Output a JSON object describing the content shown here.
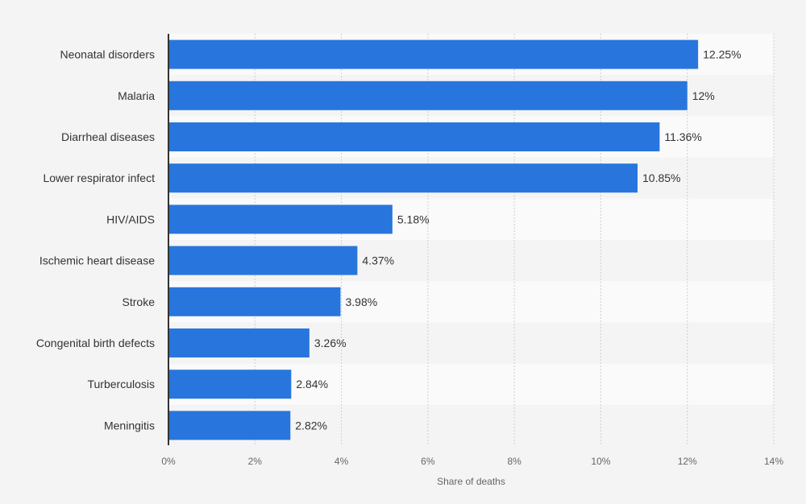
{
  "chart_data": {
    "type": "bar",
    "orientation": "horizontal",
    "title": "",
    "xlabel": "Share of deaths",
    "ylabel": "",
    "categories": [
      "Neonatal disorders",
      "Malaria",
      "Diarrheal diseases",
      "Lower respirator infect",
      "HIV/AIDS",
      "Ischemic heart disease",
      "Stroke",
      "Congenital birth defects",
      "Turberculosis",
      "Meningitis"
    ],
    "values": [
      12.25,
      12,
      11.36,
      10.85,
      5.18,
      4.37,
      3.98,
      3.26,
      2.84,
      2.82
    ],
    "value_labels": [
      "12.25%",
      "12%",
      "11.36%",
      "10.85%",
      "5.18%",
      "4.37%",
      "3.98%",
      "3.26%",
      "2.84%",
      "2.82%"
    ],
    "xlim": [
      0,
      14
    ],
    "x_ticks": [
      0,
      2,
      4,
      6,
      8,
      10,
      12,
      14
    ],
    "x_tick_labels": [
      "0%",
      "2%",
      "4%",
      "6%",
      "8%",
      "10%",
      "12%",
      "14%"
    ],
    "grid": true,
    "legend": "none",
    "colors": {
      "bar": "#2876dd",
      "background": "#f4f4f4",
      "band_light": "#fafafa",
      "grid": "#cfcfcf",
      "axis": "#333333"
    }
  }
}
